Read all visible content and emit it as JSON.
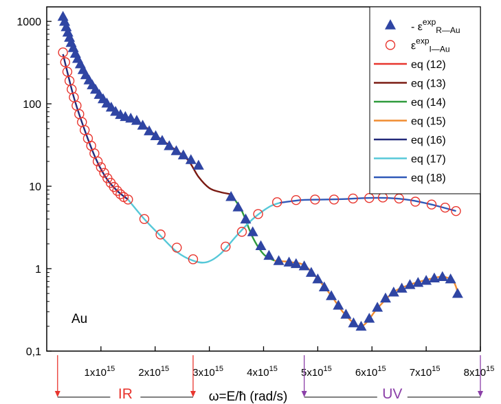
{
  "chart_data": {
    "type": "scatter",
    "title": "",
    "y_scale": "log",
    "xlim": [
      0,
      8000000000000000.0
    ],
    "ylim": [
      0.1,
      1500
    ],
    "x_ticks": [
      {
        "value": 1000000000000000.0,
        "mant": "1x10",
        "exp": "15"
      },
      {
        "value": 2000000000000000.0,
        "mant": "2x10",
        "exp": "15"
      },
      {
        "value": 3000000000000000.0,
        "mant": "3x10",
        "exp": "15"
      },
      {
        "value": 4000000000000000.0,
        "mant": "4x10",
        "exp": "15"
      },
      {
        "value": 5000000000000000.0,
        "mant": "5x10",
        "exp": "15"
      },
      {
        "value": 6000000000000000.0,
        "mant": "6x10",
        "exp": "15"
      },
      {
        "value": 7000000000000000.0,
        "mant": "7x10",
        "exp": "15"
      },
      {
        "value": 8000000000000000.0,
        "mant": "8x10",
        "exp": "15"
      }
    ],
    "y_ticks": [
      {
        "value": 0.1,
        "label": "0,1"
      },
      {
        "value": 1,
        "label": "1"
      },
      {
        "value": 10,
        "label": "10"
      },
      {
        "value": 100,
        "label": "100"
      },
      {
        "value": 1000,
        "label": "1000"
      }
    ],
    "xlabel": "ω=E/ħ (rad/s)",
    "annotation": "Au",
    "regions": [
      {
        "label": "IR",
        "x_start": 200000000000000.0,
        "x_end": 2700000000000000.0,
        "color": "#e8352e"
      },
      {
        "label": "UV",
        "x_start": 4750000000000000.0,
        "x_end": 8000000000000000.0,
        "color": "#8b3fa8"
      }
    ],
    "legend": {
      "position": "top-right",
      "entries": [
        {
          "kind": "marker-triangle",
          "color": "#2f45a3",
          "prefix": "- ε",
          "sup": "exp",
          "sub": "R—Au"
        },
        {
          "kind": "marker-circle",
          "color": "#e8352e",
          "prefix": "ε",
          "sup": "exp",
          "sub": "I—Au"
        },
        {
          "kind": "line",
          "color": "#e8352e",
          "label": "eq (12)"
        },
        {
          "kind": "line",
          "color": "#7a1a12",
          "label": "eq (13)"
        },
        {
          "kind": "line",
          "color": "#2e9a3c",
          "label": "eq (14)"
        },
        {
          "kind": "line",
          "color": "#f08c30",
          "label": "eq (15)"
        },
        {
          "kind": "line",
          "color": "#232a7a",
          "label": "eq (16)"
        },
        {
          "kind": "line",
          "color": "#56c8d8",
          "label": "eq (17)"
        },
        {
          "kind": "line",
          "color": "#2f58b8",
          "label": "eq (18)"
        }
      ]
    },
    "series": [
      {
        "marker": "triangle",
        "color": "#2f45a3",
        "x": [
          300000000000000.0,
          330000000000000.0,
          360000000000000.0,
          390000000000000.0,
          420000000000000.0,
          450000000000000.0,
          490000000000000.0,
          530000000000000.0,
          570000000000000.0,
          620000000000000.0,
          670000000000000.0,
          720000000000000.0,
          780000000000000.0,
          840000000000000.0,
          900000000000000.0,
          970000000000000.0,
          1040000000000000.0,
          1110000000000000.0,
          1190000000000000.0,
          1270000000000000.0,
          1360000000000000.0,
          1450000000000000.0,
          1550000000000000.0,
          1660000000000000.0,
          1770000000000000.0,
          1890000000000000.0,
          2010000000000000.0,
          2130000000000000.0,
          2260000000000000.0,
          2390000000000000.0,
          2520000000000000.0,
          2660000000000000.0,
          2800000000000000.0,
          3400000000000000.0,
          3530000000000000.0,
          3670000000000000.0,
          3800000000000000.0,
          3950000000000000.0,
          4100000000000000.0,
          4280000000000000.0,
          4470000000000000.0,
          4600000000000000.0,
          4750000000000000.0,
          4880000000000000.0,
          5000000000000000.0,
          5120000000000000.0,
          5250000000000000.0,
          5380000000000000.0,
          5520000000000000.0,
          5660000000000000.0,
          5800000000000000.0,
          5950000000000000.0,
          6100000000000000.0,
          6250000000000000.0,
          6400000000000000.0,
          6550000000000000.0,
          6700000000000000.0,
          6850000000000000.0,
          7000000000000000.0,
          7150000000000000.0,
          7300000000000000.0,
          7450000000000000.0,
          7580000000000000.0
        ],
        "y": [
          1150,
          1000,
          860,
          740,
          640,
          555,
          480,
          410,
          355,
          305,
          260,
          225,
          195,
          170,
          150,
          130,
          115,
          102,
          91,
          81,
          74,
          70,
          67,
          63,
          55,
          47,
          41,
          36,
          31,
          27,
          24,
          21,
          18,
          7.5,
          5.6,
          4.0,
          2.8,
          1.9,
          1.45,
          1.25,
          1.2,
          1.15,
          1.08,
          0.9,
          0.75,
          0.6,
          0.47,
          0.36,
          0.28,
          0.22,
          0.2,
          0.25,
          0.34,
          0.44,
          0.52,
          0.58,
          0.64,
          0.68,
          0.72,
          0.77,
          0.8,
          0.75,
          0.5
        ]
      },
      {
        "marker": "circle",
        "color": "#e8352e",
        "x": [
          300000000000000.0,
          340000000000000.0,
          380000000000000.0,
          420000000000000.0,
          460000000000000.0,
          500000000000000.0,
          550000000000000.0,
          600000000000000.0,
          650000000000000.0,
          700000000000000.0,
          760000000000000.0,
          820000000000000.0,
          880000000000000.0,
          940000000000000.0,
          1000000000000000.0,
          1060000000000000.0,
          1120000000000000.0,
          1180000000000000.0,
          1240000000000000.0,
          1300000000000000.0,
          1360000000000000.0,
          1420000000000000.0,
          1500000000000000.0,
          1800000000000000.0,
          2100000000000000.0,
          2400000000000000.0,
          2700000000000000.0,
          3300000000000000.0,
          3600000000000000.0,
          3900000000000000.0,
          4250000000000000.0,
          4600000000000000.0,
          4950000000000000.0,
          5300000000000000.0,
          5650000000000000.0,
          5950000000000000.0,
          6200000000000000.0,
          6500000000000000.0,
          6800000000000000.0,
          7100000000000000.0,
          7350000000000000.0,
          7550000000000000.0
        ],
        "y": [
          420,
          320,
          245,
          190,
          150,
          120,
          95,
          75,
          60,
          48,
          38,
          31,
          25,
          20,
          17,
          14.5,
          12.5,
          11,
          9.8,
          8.8,
          8.0,
          7.4,
          6.9,
          4.0,
          2.6,
          1.8,
          1.3,
          1.85,
          2.8,
          4.6,
          6.4,
          6.8,
          6.9,
          6.9,
          7.1,
          7.2,
          7.3,
          7.1,
          6.5,
          6.0,
          5.5,
          5.0
        ]
      },
      {
        "marker": "line",
        "color": "#e8352e",
        "x": [
          300000000000000.0,
          500000000000000.0,
          700000000000000.0,
          900000000000000.0,
          1100000000000000.0,
          1300000000000000.0,
          1450000000000000.0
        ],
        "y": [
          1150,
          470,
          235,
          145,
          105,
          80,
          70
        ]
      },
      {
        "marker": "line",
        "color": "#7a1a12",
        "x": [
          1450000000000000.0,
          1700000000000000.0,
          2000000000000000.0,
          2300000000000000.0,
          2600000000000000.0,
          2800000000000000.0,
          3000000000000000.0,
          3200000000000000.0,
          3400000000000000.0
        ],
        "y": [
          70,
          60,
          42,
          30,
          21,
          13,
          9.5,
          8.5,
          8.0
        ]
      },
      {
        "marker": "line",
        "color": "#2e9a3c",
        "x": [
          3400000000000000.0,
          3600000000000000.0,
          3800000000000000.0,
          4000000000000000.0,
          4200000000000000.0
        ],
        "y": [
          8.0,
          5.0,
          2.4,
          1.5,
          1.25
        ]
      },
      {
        "marker": "line",
        "color": "#f08c30",
        "x": [
          4200000000000000.0,
          4500000000000000.0,
          4750000000000000.0,
          5000000000000000.0,
          5250000000000000.0,
          5500000000000000.0,
          5800000000000000.0,
          6100000000000000.0,
          6400000000000000.0,
          6700000000000000.0,
          7000000000000000.0,
          7300000000000000.0,
          7500000000000000.0,
          7580000000000000.0
        ],
        "y": [
          1.25,
          1.2,
          1.1,
          0.75,
          0.47,
          0.28,
          0.2,
          0.33,
          0.52,
          0.64,
          0.73,
          0.8,
          0.7,
          0.52
        ]
      },
      {
        "marker": "line",
        "color": "#232a7a",
        "x": [
          300000000000000.0,
          500000000000000.0,
          700000000000000.0,
          900000000000000.0,
          1100000000000000.0,
          1300000000000000.0,
          1500000000000000.0
        ],
        "y": [
          400,
          120,
          48,
          22,
          12.5,
          8.8,
          6.9
        ]
      },
      {
        "marker": "line",
        "color": "#56c8d8",
        "x": [
          1500000000000000.0,
          1800000000000000.0,
          2100000000000000.0,
          2400000000000000.0,
          2700000000000000.0,
          2950000000000000.0,
          3200000000000000.0,
          3500000000000000.0,
          3800000000000000.0,
          4100000000000000.0,
          4300000000000000.0
        ],
        "y": [
          6.9,
          4.0,
          2.5,
          1.6,
          1.25,
          1.2,
          1.5,
          2.5,
          4.0,
          5.6,
          6.3
        ]
      },
      {
        "marker": "line",
        "color": "#2f58b8",
        "x": [
          4300000000000000.0,
          4700000000000000.0,
          5100000000000000.0,
          5500000000000000.0,
          5900000000000000.0,
          6300000000000000.0,
          6700000000000000.0,
          7100000000000000.0,
          7550000000000000.0
        ],
        "y": [
          6.3,
          6.8,
          6.9,
          7.0,
          7.2,
          7.2,
          6.8,
          6.0,
          5.0
        ]
      }
    ]
  }
}
